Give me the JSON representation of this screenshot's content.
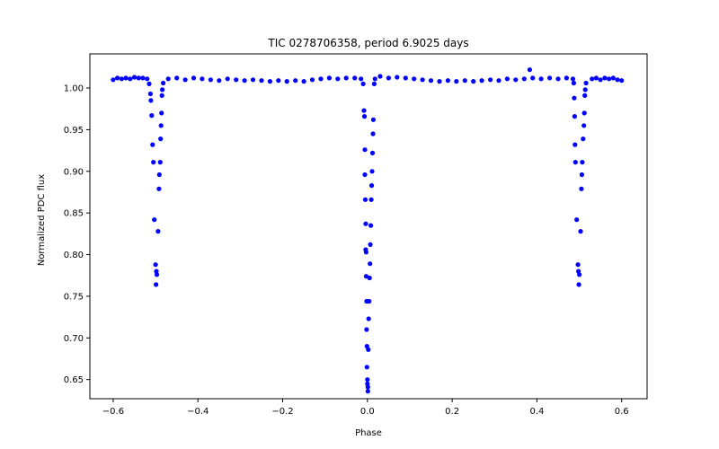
{
  "chart_data": {
    "type": "scatter",
    "title": "TIC 0278706358, period 6.9025 days",
    "xlabel": "Phase",
    "ylabel": "Normalized PDC flux",
    "xlim": [
      -0.655,
      0.66
    ],
    "ylim": [
      0.627,
      1.041
    ],
    "xticks": [
      -0.6,
      -0.4,
      -0.2,
      0.0,
      0.2,
      0.4,
      0.6
    ],
    "xtick_labels": [
      "−0.6",
      "−0.4",
      "−0.2",
      "0.0",
      "0.2",
      "0.4",
      "0.6"
    ],
    "yticks": [
      0.65,
      0.7,
      0.75,
      0.8,
      0.85,
      0.9,
      0.95,
      1.0
    ],
    "ytick_labels": [
      "0.65",
      "0.70",
      "0.75",
      "0.80",
      "0.85",
      "0.90",
      "0.95",
      "1.00"
    ],
    "grid": false,
    "legend": "none",
    "marker_color": "#0000ff",
    "series": [
      {
        "points": [
          [
            -0.6,
            1.01
          ],
          [
            -0.59,
            1.012
          ],
          [
            -0.58,
            1.011
          ],
          [
            -0.57,
            1.012
          ],
          [
            -0.56,
            1.011
          ],
          [
            -0.55,
            1.013
          ],
          [
            -0.54,
            1.012
          ],
          [
            -0.53,
            1.012
          ],
          [
            -0.52,
            1.011
          ],
          [
            -0.515,
            1.005
          ],
          [
            -0.512,
            0.993
          ],
          [
            -0.511,
            0.985
          ],
          [
            -0.509,
            0.967
          ],
          [
            -0.507,
            0.932
          ],
          [
            -0.505,
            0.911
          ],
          [
            -0.503,
            0.842
          ],
          [
            -0.5,
            0.788
          ],
          [
            -0.498,
            0.78
          ],
          [
            -0.497,
            0.776
          ],
          [
            -0.499,
            0.764
          ],
          [
            -0.494,
            0.828
          ],
          [
            -0.492,
            0.879
          ],
          [
            -0.491,
            0.896
          ],
          [
            -0.489,
            0.911
          ],
          [
            -0.488,
            0.939
          ],
          [
            -0.487,
            0.955
          ],
          [
            -0.486,
            0.97
          ],
          [
            -0.485,
            0.991
          ],
          [
            -0.484,
            0.998
          ],
          [
            -0.482,
            1.006
          ],
          [
            -0.47,
            1.011
          ],
          [
            -0.45,
            1.012
          ],
          [
            -0.43,
            1.01
          ],
          [
            -0.41,
            1.012
          ],
          [
            -0.39,
            1.011
          ],
          [
            -0.37,
            1.01
          ],
          [
            -0.35,
            1.009
          ],
          [
            -0.33,
            1.011
          ],
          [
            -0.31,
            1.01
          ],
          [
            -0.29,
            1.009
          ],
          [
            -0.27,
            1.01
          ],
          [
            -0.25,
            1.009
          ],
          [
            -0.23,
            1.008
          ],
          [
            -0.21,
            1.009
          ],
          [
            -0.19,
            1.008
          ],
          [
            -0.17,
            1.009
          ],
          [
            -0.15,
            1.008
          ],
          [
            -0.13,
            1.01
          ],
          [
            -0.11,
            1.011
          ],
          [
            -0.09,
            1.012
          ],
          [
            -0.07,
            1.011
          ],
          [
            -0.05,
            1.012
          ],
          [
            -0.03,
            1.012
          ],
          [
            -0.015,
            1.011
          ],
          [
            -0.01,
            1.005
          ],
          [
            -0.008,
            0.973
          ],
          [
            -0.007,
            0.966
          ],
          [
            -0.006,
            0.926
          ],
          [
            -0.006,
            0.896
          ],
          [
            -0.005,
            0.866
          ],
          [
            -0.004,
            0.837
          ],
          [
            -0.004,
            0.806
          ],
          [
            -0.003,
            0.803
          ],
          [
            -0.003,
            0.774
          ],
          [
            -0.002,
            0.744
          ],
          [
            -0.002,
            0.71
          ],
          [
            -0.001,
            0.69
          ],
          [
            -0.001,
            0.665
          ],
          [
            0.0,
            0.65
          ],
          [
            0.0,
            0.645
          ],
          [
            0.001,
            0.641
          ],
          [
            0.001,
            0.636
          ],
          [
            0.002,
            0.686
          ],
          [
            0.003,
            0.723
          ],
          [
            0.004,
            0.744
          ],
          [
            0.005,
            0.772
          ],
          [
            0.006,
            0.789
          ],
          [
            0.007,
            0.812
          ],
          [
            0.008,
            0.835
          ],
          [
            0.009,
            0.866
          ],
          [
            0.01,
            0.883
          ],
          [
            0.011,
            0.9
          ],
          [
            0.012,
            0.922
          ],
          [
            0.013,
            0.945
          ],
          [
            0.014,
            0.962
          ],
          [
            0.016,
            1.005
          ],
          [
            0.018,
            1.011
          ],
          [
            0.03,
            1.014
          ],
          [
            0.05,
            1.012
          ],
          [
            0.07,
            1.013
          ],
          [
            0.09,
            1.012
          ],
          [
            0.11,
            1.011
          ],
          [
            0.13,
            1.01
          ],
          [
            0.15,
            1.009
          ],
          [
            0.17,
            1.008
          ],
          [
            0.19,
            1.009
          ],
          [
            0.21,
            1.008
          ],
          [
            0.23,
            1.009
          ],
          [
            0.25,
            1.008
          ],
          [
            0.27,
            1.009
          ],
          [
            0.29,
            1.01
          ],
          [
            0.31,
            1.009
          ],
          [
            0.33,
            1.011
          ],
          [
            0.35,
            1.01
          ],
          [
            0.37,
            1.011
          ],
          [
            0.383,
            1.022
          ],
          [
            0.39,
            1.012
          ],
          [
            0.41,
            1.011
          ],
          [
            0.43,
            1.012
          ],
          [
            0.45,
            1.011
          ],
          [
            0.47,
            1.012
          ],
          [
            0.485,
            1.011
          ],
          [
            0.487,
            1.006
          ],
          [
            0.488,
            0.988
          ],
          [
            0.489,
            0.966
          ],
          [
            0.49,
            0.932
          ],
          [
            0.491,
            0.911
          ],
          [
            0.494,
            0.842
          ],
          [
            0.497,
            0.788
          ],
          [
            0.498,
            0.78
          ],
          [
            0.5,
            0.776
          ],
          [
            0.499,
            0.764
          ],
          [
            0.503,
            0.828
          ],
          [
            0.505,
            0.879
          ],
          [
            0.506,
            0.896
          ],
          [
            0.507,
            0.911
          ],
          [
            0.509,
            0.939
          ],
          [
            0.511,
            0.955
          ],
          [
            0.512,
            0.97
          ],
          [
            0.513,
            0.991
          ],
          [
            0.514,
            0.998
          ],
          [
            0.516,
            1.006
          ],
          [
            0.53,
            1.011
          ],
          [
            0.54,
            1.012
          ],
          [
            0.55,
            1.01
          ],
          [
            0.56,
            1.012
          ],
          [
            0.57,
            1.011
          ],
          [
            0.58,
            1.012
          ],
          [
            0.59,
            1.01
          ],
          [
            0.6,
            1.009
          ]
        ]
      }
    ]
  }
}
